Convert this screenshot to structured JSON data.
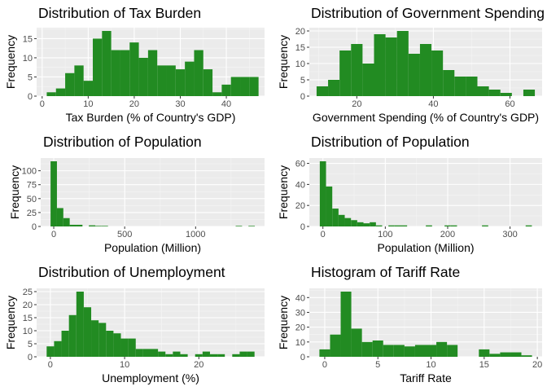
{
  "colors": {
    "bar": "#228b22",
    "panel_bg": "#ebebeb",
    "grid_major": "#ffffff",
    "text": "#000000",
    "tick_text": "#4d4d4d"
  },
  "chart_data": [
    {
      "type": "histogram",
      "title": "Distribution of Tax Burden",
      "xlabel": "Tax Burden (% of Country's GDP)",
      "ylabel": "Frequency",
      "bin_width": 2,
      "bins_start": [
        1,
        3,
        5,
        7,
        9,
        11,
        13,
        15,
        17,
        19,
        21,
        23,
        25,
        27,
        29,
        31,
        33,
        35,
        37,
        39,
        41,
        43,
        45
      ],
      "counts": [
        1,
        2,
        6,
        8,
        4,
        15,
        17,
        12,
        12,
        14,
        10,
        12,
        8,
        8,
        7,
        9,
        12,
        7,
        1,
        3,
        5,
        5,
        5
      ],
      "xlim": [
        -1.2,
        48.3
      ],
      "ylim": [
        0,
        17.85
      ],
      "xticks": [
        0,
        10,
        20,
        30,
        40
      ],
      "yticks": [
        0,
        5,
        10,
        15
      ],
      "grid": true
    },
    {
      "type": "histogram",
      "title": "Distribution of Government Spending",
      "xlabel": "Government Spending (% of Country's GDP)",
      "ylabel": "Frequency",
      "bin_width": 3,
      "bins_start": [
        9.5,
        12.5,
        15.5,
        18.5,
        21.5,
        24.5,
        27.5,
        30.5,
        33.5,
        36.5,
        39.5,
        42.5,
        45.5,
        48.5,
        51.5,
        54.5,
        57.5,
        60.5,
        63.5
      ],
      "counts": [
        3,
        5,
        14,
        16,
        10,
        19,
        18,
        20,
        13,
        16,
        14,
        8,
        6,
        6,
        3,
        2,
        1,
        0,
        2
      ],
      "xlim": [
        7.6,
        68.4
      ],
      "ylim": [
        0,
        21
      ],
      "xticks": [
        20,
        40,
        60
      ],
      "yticks": [
        0,
        5,
        10,
        15,
        20
      ],
      "grid": true
    },
    {
      "type": "histogram",
      "title": "Distribution of Population",
      "xlabel": "Population (Million)",
      "ylabel": "Frequency",
      "bin_width": 45,
      "bins_start": [
        -22.5,
        22.5,
        67.5,
        112.5,
        157.5,
        202.5,
        247.5,
        292.5,
        337.5,
        382.5,
        427.5,
        472.5,
        517.5,
        562.5,
        607.5,
        652.5,
        697.5,
        742.5,
        787.5,
        832.5,
        877.5,
        922.5,
        967.5,
        1012.5,
        1057.5,
        1102.5,
        1147.5,
        1192.5,
        1237.5,
        1282.5,
        1327.5,
        1372.5
      ],
      "counts": [
        117,
        33,
        15,
        3,
        3,
        0,
        2,
        1,
        1,
        0,
        0,
        0,
        0,
        0,
        0,
        0,
        0,
        0,
        0,
        0,
        0,
        0,
        0,
        0,
        0,
        0,
        0,
        0,
        0,
        1,
        0,
        1
      ],
      "xlim": [
        -92,
        1486
      ],
      "ylim": [
        0,
        122.85
      ],
      "xticks": [
        0,
        500,
        1000
      ],
      "yticks": [
        0,
        25,
        50,
        75,
        100
      ],
      "grid": true
    },
    {
      "type": "histogram",
      "title": "Distribution of Population",
      "xlabel": "Population (Million)",
      "ylabel": "Frequency",
      "bin_width": 10,
      "bins_start": [
        -5,
        5,
        15,
        25,
        35,
        45,
        55,
        65,
        75,
        85,
        95,
        105,
        115,
        125,
        135,
        145,
        155,
        165,
        175,
        185,
        195,
        205,
        215,
        225,
        235,
        245,
        255,
        265,
        275,
        285,
        295,
        305,
        315,
        325
      ],
      "counts": [
        62,
        38,
        17,
        11,
        8,
        6,
        4,
        3,
        4,
        1,
        0,
        1,
        1,
        1,
        0,
        0,
        0,
        1,
        0,
        0,
        1,
        1,
        0,
        0,
        0,
        0,
        1,
        0,
        0,
        0,
        0,
        0,
        0,
        1
      ],
      "xlim": [
        -21.8,
        351.4
      ],
      "ylim": [
        0,
        65.1
      ],
      "xticks": [
        0,
        100,
        200,
        300
      ],
      "yticks": [
        0,
        20,
        40,
        60
      ],
      "grid": true
    },
    {
      "type": "histogram",
      "title": "Distribution of Unemployment",
      "xlabel": "Unemployment (%)",
      "ylabel": "Frequency",
      "bin_width": 1,
      "bins_start": [
        -0.5,
        0.5,
        1.5,
        2.5,
        3.5,
        4.5,
        5.5,
        6.5,
        7.5,
        8.5,
        9.5,
        10.5,
        11.5,
        12.5,
        13.5,
        14.5,
        15.5,
        16.5,
        17.5,
        18.5,
        19.5,
        20.5,
        21.5,
        22.5,
        23.5,
        24.5,
        25.5,
        26.5
      ],
      "counts": [
        4,
        6,
        10,
        16,
        25,
        19,
        14,
        13,
        10,
        9,
        7,
        7,
        3,
        3,
        3,
        2,
        1,
        2,
        1,
        0,
        1,
        2,
        1,
        1,
        0,
        1,
        2,
        2
      ],
      "xlim": [
        -1.85,
        28.85
      ],
      "ylim": [
        0,
        26.25
      ],
      "xticks": [
        0,
        10,
        20
      ],
      "yticks": [
        0,
        5,
        10,
        15,
        20,
        25
      ],
      "grid": true
    },
    {
      "type": "histogram",
      "title": "Histogram of Tariff Rate",
      "xlabel": "Tariff Rate",
      "ylabel": "Frequency",
      "bin_width": 1,
      "bins_start": [
        -0.5,
        0.5,
        1.5,
        2.5,
        3.5,
        4.5,
        5.5,
        6.5,
        7.5,
        8.5,
        9.5,
        10.5,
        11.5,
        12.5,
        13.5,
        14.5,
        15.5,
        16.5,
        17.5,
        18.5
      ],
      "counts": [
        5,
        15,
        44,
        19,
        10,
        11,
        8,
        8,
        7,
        8,
        8,
        10,
        8,
        0,
        0,
        5,
        2,
        3,
        3,
        1
      ],
      "xlim": [
        -1.45,
        20.45
      ],
      "ylim": [
        0,
        46.2
      ],
      "xticks": [
        0,
        5,
        10,
        15,
        20
      ],
      "yticks": [
        0,
        10,
        20,
        30,
        40
      ],
      "grid": true
    }
  ]
}
